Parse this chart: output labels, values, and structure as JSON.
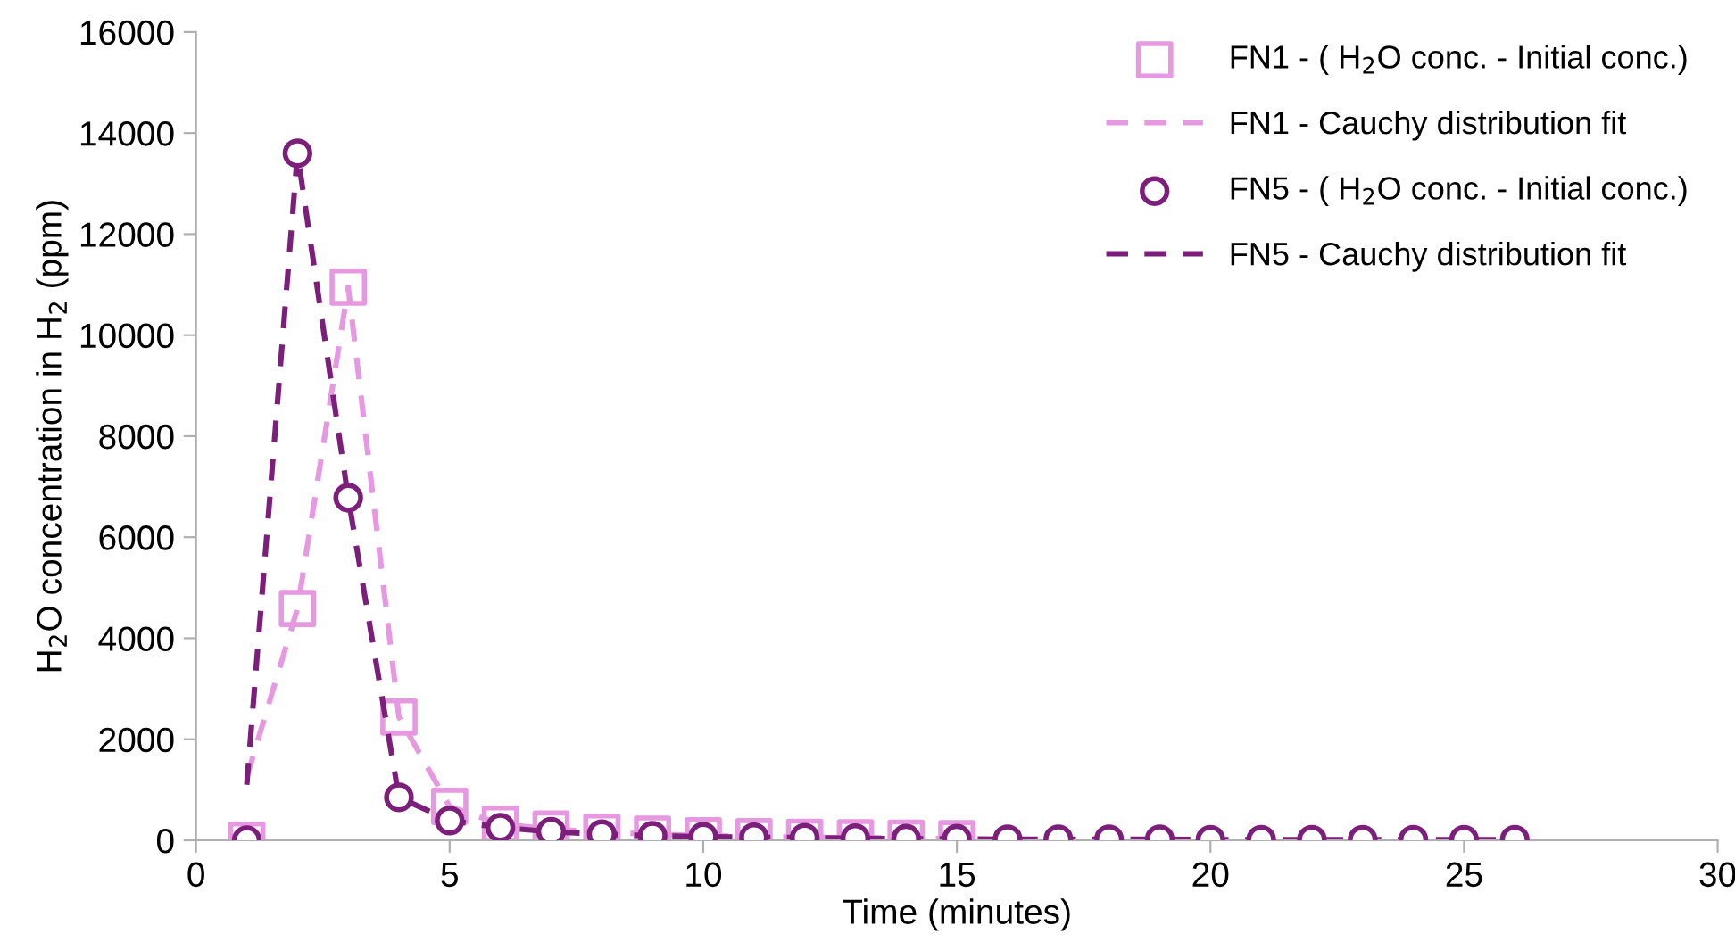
{
  "chart_data": {
    "type": "line",
    "xlabel": "Time (minutes)",
    "ylabel": "H$_{2}$O concentration in H$_{2}$ (ppm)",
    "xlim": [
      0,
      30
    ],
    "xticks": [
      0,
      5,
      10,
      15,
      20,
      25,
      30
    ],
    "ylim": [
      0,
      16000
    ],
    "yticks": [
      0,
      2000,
      4000,
      6000,
      8000,
      10000,
      12000,
      14000,
      16000
    ],
    "grid": false,
    "legend": "top right",
    "series": [
      {
        "name": "FN1 - ( H$_{2}$O conc. - Initial conc.)",
        "type": "scatter",
        "marker": "square",
        "color": "#e699e0",
        "x": [
          1,
          2,
          3,
          4,
          5,
          6,
          7,
          8,
          9,
          10,
          11,
          12,
          13,
          14,
          15
        ],
        "values": [
          0,
          4590,
          10950,
          2440,
          670,
          320,
          220,
          160,
          120,
          90,
          70,
          60,
          50,
          40,
          30
        ]
      },
      {
        "name": "FN1 - Cauchy distribution fit",
        "line_style": "dashed",
        "color": "#e699e0",
        "x": [
          1,
          2,
          3,
          4,
          5,
          6,
          7,
          8,
          9,
          10,
          11,
          12,
          13,
          14,
          15
        ],
        "values": [
          1250,
          4590,
          10950,
          2440,
          670,
          320,
          220,
          160,
          120,
          90,
          70,
          60,
          50,
          40,
          30
        ]
      },
      {
        "name": "FN5 - ( H$_{2}$O conc. - Initial conc.)",
        "type": "scatter",
        "marker": "circle",
        "color": "#7b1f7a",
        "x": [
          1,
          2,
          3,
          4,
          5,
          6,
          7,
          8,
          9,
          10,
          11,
          12,
          13,
          14,
          15,
          16,
          17,
          18,
          19,
          20,
          21,
          22,
          23,
          24,
          25,
          26
        ],
        "values": [
          0,
          13600,
          6780,
          850,
          390,
          250,
          170,
          120,
          90,
          70,
          60,
          50,
          40,
          30,
          30,
          20,
          20,
          20,
          20,
          10,
          10,
          10,
          10,
          10,
          10,
          10
        ]
      },
      {
        "name": "FN5 - Cauchy distribution fit",
        "line_style": "dashed",
        "color": "#7b1f7a",
        "x": [
          1,
          2,
          3,
          4,
          5,
          6,
          7,
          8,
          9,
          10,
          11,
          12,
          13,
          14,
          15,
          16,
          17,
          18,
          19,
          20,
          21,
          22,
          23,
          24,
          25,
          26
        ],
        "values": [
          1100,
          13600,
          6780,
          850,
          390,
          250,
          170,
          120,
          90,
          70,
          60,
          50,
          40,
          30,
          30,
          20,
          20,
          20,
          20,
          10,
          10,
          10,
          10,
          10,
          10,
          10
        ]
      }
    ]
  }
}
